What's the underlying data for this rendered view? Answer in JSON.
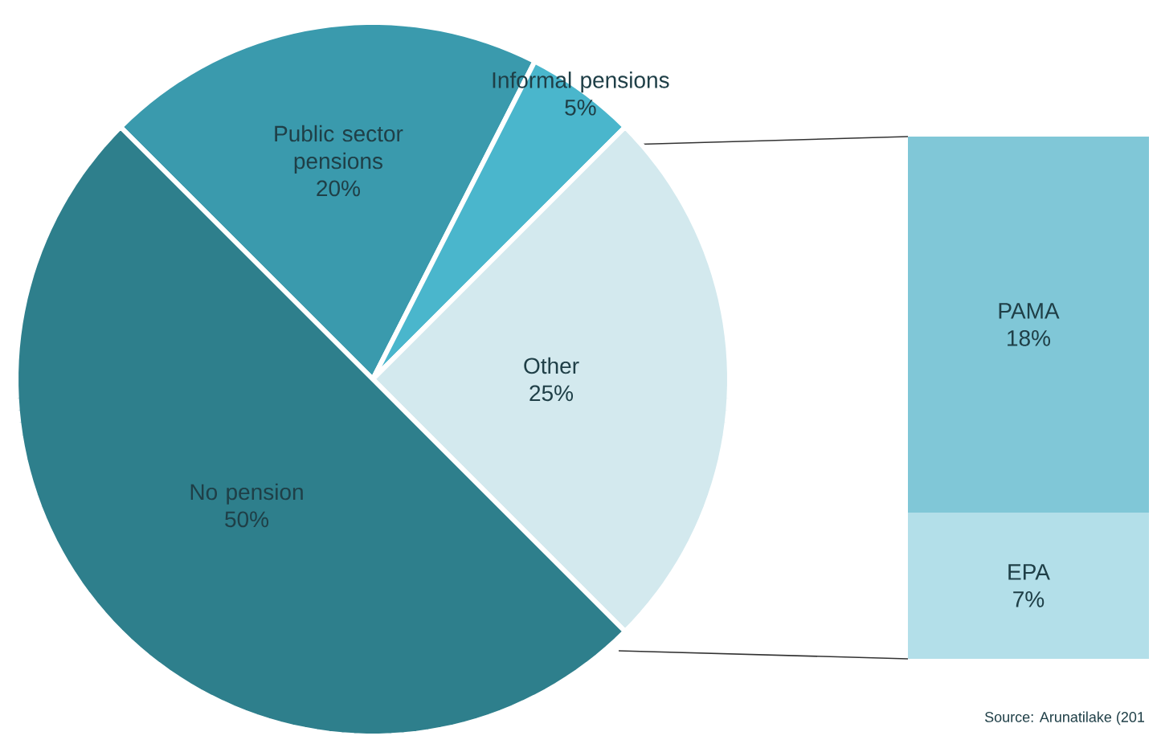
{
  "chart_data": [
    {
      "type": "pie",
      "categories": [
        "Public sector pensions",
        "Informal pensions",
        "Other",
        "No pension"
      ],
      "values": [
        20,
        5,
        25,
        50
      ],
      "value_labels": [
        "20%",
        "5%",
        "25%",
        "50%"
      ],
      "colors": [
        "#3a9aad",
        "#4ab6cc",
        "#d3e9ee",
        "#2e7f8c"
      ],
      "annotations": [
        "Source: Arunatilake (201"
      ]
    },
    {
      "type": "bar",
      "stacked": true,
      "tick_labels": false,
      "categories": [
        null
      ],
      "series": [
        {
          "name": "EPA",
          "color": "#b3dfe9",
          "values": [
            7
          ],
          "value_labels": [
            "7%"
          ]
        },
        {
          "name": "PAMA",
          "color": "#80c7d7",
          "values": [
            18
          ],
          "value_labels": [
            "18%"
          ]
        }
      ]
    }
  ]
}
